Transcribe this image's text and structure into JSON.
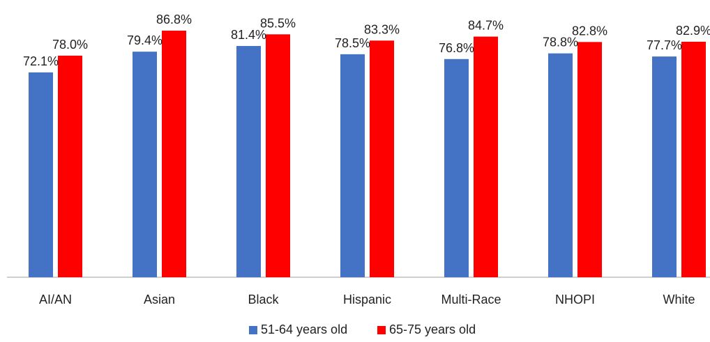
{
  "chart_data": {
    "type": "bar",
    "categories": [
      "AI/AN",
      "Asian",
      "Black",
      "Hispanic",
      "Multi-Race",
      "NHOPI",
      "White"
    ],
    "series": [
      {
        "name": "51-64 years old",
        "color": "#4472C4",
        "values": [
          72.1,
          79.4,
          81.4,
          78.5,
          76.8,
          78.8,
          77.7
        ],
        "labels": [
          "72.1%",
          "79.4%",
          "81.4%",
          "78.5%",
          "76.8%",
          "78.8%",
          "77.7%"
        ]
      },
      {
        "name": "65-75 years old",
        "color": "#FF0000",
        "values": [
          78.0,
          86.8,
          85.5,
          83.3,
          84.7,
          82.8,
          82.9
        ],
        "labels": [
          "78.0%",
          "86.8%",
          "85.5%",
          "83.3%",
          "84.7%",
          "82.8%",
          "82.9%"
        ]
      }
    ],
    "title": "",
    "xlabel": "",
    "ylabel": "",
    "ylim": [
      0,
      86.8
    ],
    "y_unit": "%",
    "grid": false,
    "legend_position": "bottom"
  }
}
